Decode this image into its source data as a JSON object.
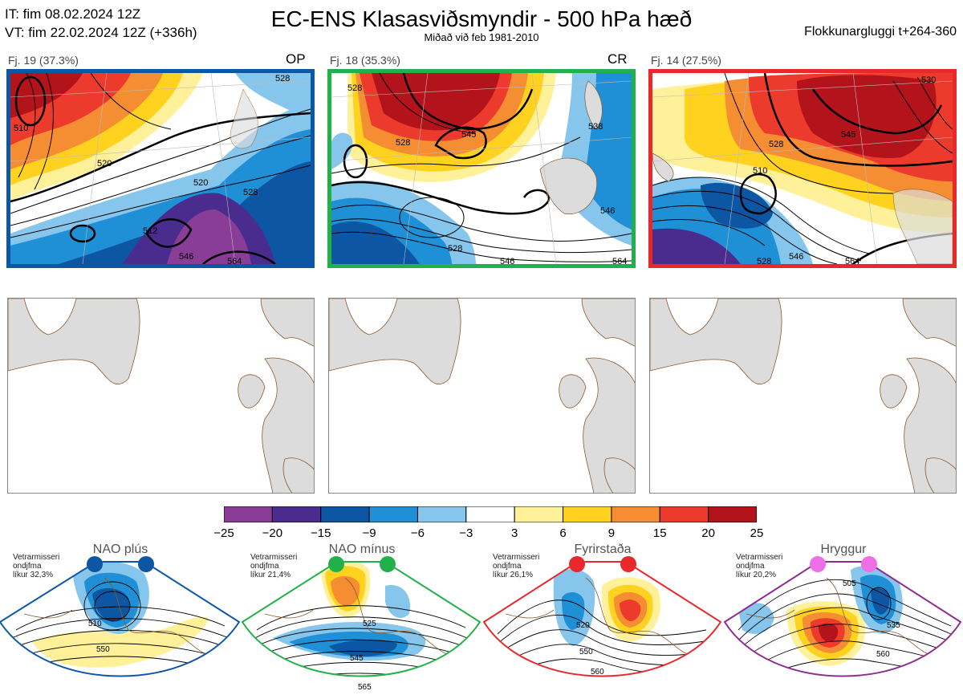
{
  "header": {
    "it_line": "IT: fim 08.02.2024 12Z",
    "vt_line": "VT: fim 22.02.2024 12Z  (+336h)",
    "title": "EC-ENS Klasasviðsmyndir - 500 hPa hæð",
    "subtitle": "Miðað við feb 1981-2010",
    "window": "Flokkunargluggi t+264-360"
  },
  "colors": {
    "op_frame": "#0c56a3",
    "cr_frame": "#22b04a",
    "third_frame": "#e8282b",
    "ridge_frame": "#8e2c91",
    "land": "#dcdcdc",
    "coast": "#8a5a2b"
  },
  "clusters": [
    {
      "label": "Fj. 19 (37.3%)",
      "tag": "OP",
      "contour_labels": [
        "510",
        "520",
        "528",
        "520",
        "528",
        "546",
        "564",
        "512"
      ]
    },
    {
      "label": "Fj. 18 (35.3%)",
      "tag": "CR",
      "contour_labels": [
        "528",
        "545",
        "528",
        "528",
        "546",
        "538",
        "546",
        "564"
      ]
    },
    {
      "label": "Fj. 14 (27.5%)",
      "tag": "",
      "contour_labels": [
        "528",
        "545",
        "510",
        "528",
        "546",
        "564",
        "530"
      ]
    }
  ],
  "colorbar": {
    "ticks": [
      "−25",
      "−20",
      "−15",
      "−9",
      "−6",
      "−3",
      "3",
      "6",
      "9",
      "15",
      "20",
      "25"
    ],
    "colors": [
      "#8a3d97",
      "#4a2c8f",
      "#0c56a3",
      "#1f8fd6",
      "#86c6ec",
      "#ffffff",
      "#fff199",
      "#ffd21f",
      "#f58d32",
      "#ec3a2c",
      "#b3141b"
    ]
  },
  "regimes": [
    {
      "name": "NAO plús",
      "note": [
        "Vetrarmisseri",
        "ondjfma",
        "líkur 32,3%"
      ],
      "dot_color": "#0c56a3",
      "contours": [
        "510",
        "550"
      ]
    },
    {
      "name": "NAO mínus",
      "note": [
        "Vetrarmisseri",
        "ondjfma",
        "líkur 21,4%"
      ],
      "dot_color": "#22b04a",
      "contours": [
        "525",
        "545",
        "565"
      ]
    },
    {
      "name": "Fyrirstaða",
      "note": [
        "Vetrarmisseri",
        "ondjfma",
        "líkur 26,1%"
      ],
      "dot_color": "#e8282b",
      "contours": [
        "520",
        "550",
        "560"
      ]
    },
    {
      "name": "Hryggur",
      "note": [
        "Vetrarmisseri",
        "ondjfma",
        "líkur 20,2%"
      ],
      "dot_color": "#ee6ee8",
      "contours": [
        "505",
        "535",
        "560"
      ]
    }
  ]
}
